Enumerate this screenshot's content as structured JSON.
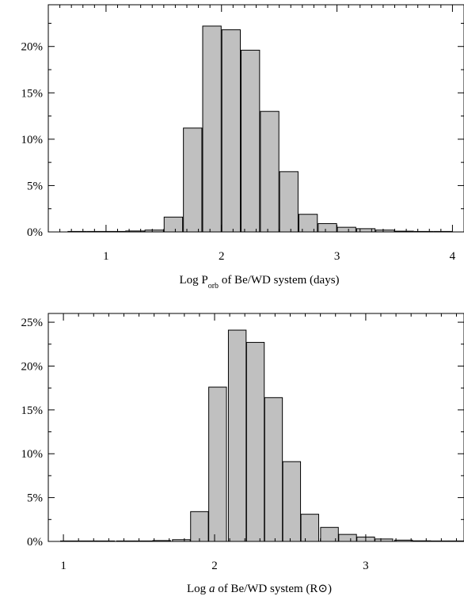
{
  "chart_data": [
    {
      "type": "bar",
      "xlabel": "Log P_orb of Be/WD system (days)",
      "xlabel_parts": {
        "pre": "Log P",
        "sub": "orb",
        "post": " of Be/WD system (days)"
      },
      "ylabel": "",
      "xlim": [
        0.5,
        4.1
      ],
      "ylim": [
        0,
        0.245
      ],
      "xticks": [
        1,
        2,
        3,
        4
      ],
      "yticks": [
        0,
        0.05,
        0.1,
        0.15,
        0.2
      ],
      "ytick_labels": [
        "0%",
        "5%",
        "10%",
        "15%",
        "20%"
      ],
      "bin_width": 0.1667,
      "bin_centers": [
        0.75,
        0.917,
        1.083,
        1.25,
        1.417,
        1.583,
        1.75,
        1.917,
        2.083,
        2.25,
        2.417,
        2.583,
        2.75,
        2.917,
        3.083,
        3.25,
        3.417,
        3.583,
        3.75,
        3.917
      ],
      "values": [
        0.0,
        0.0,
        0.0005,
        0.001,
        0.002,
        0.016,
        0.112,
        0.222,
        0.218,
        0.196,
        0.13,
        0.065,
        0.019,
        0.009,
        0.005,
        0.0035,
        0.002,
        0.0008,
        0.0003,
        0.0001
      ],
      "grid": false,
      "legend": false
    },
    {
      "type": "bar",
      "xlabel": "Log a of Be/WD system (R⊙)",
      "xlabel_parts": {
        "pre": "Log ",
        "italic": "a",
        "post": " of Be/WD system (R⊙)"
      },
      "ylabel": "",
      "xlim": [
        0.9,
        3.65
      ],
      "ylim": [
        0,
        0.26
      ],
      "xticks": [
        1,
        2,
        3
      ],
      "yticks": [
        0,
        0.05,
        0.1,
        0.15,
        0.2,
        0.25
      ],
      "ytick_labels": [
        "0%",
        "5%",
        "10%",
        "15%",
        "20%",
        "25%"
      ],
      "bin_width": 0.1225,
      "bin_centers": [
        1.04,
        1.16,
        1.28,
        1.41,
        1.53,
        1.65,
        1.78,
        1.9,
        2.02,
        2.15,
        2.27,
        2.39,
        2.51,
        2.63,
        2.76,
        2.88,
        3.0,
        3.12,
        3.25,
        3.37,
        3.49,
        3.61
      ],
      "values": [
        0.0,
        0.0,
        0.0,
        0.0,
        0.0005,
        0.001,
        0.002,
        0.034,
        0.176,
        0.241,
        0.227,
        0.164,
        0.091,
        0.031,
        0.016,
        0.008,
        0.005,
        0.0028,
        0.0015,
        0.0007,
        0.0003,
        0.0001
      ],
      "grid": false,
      "legend": false
    }
  ]
}
